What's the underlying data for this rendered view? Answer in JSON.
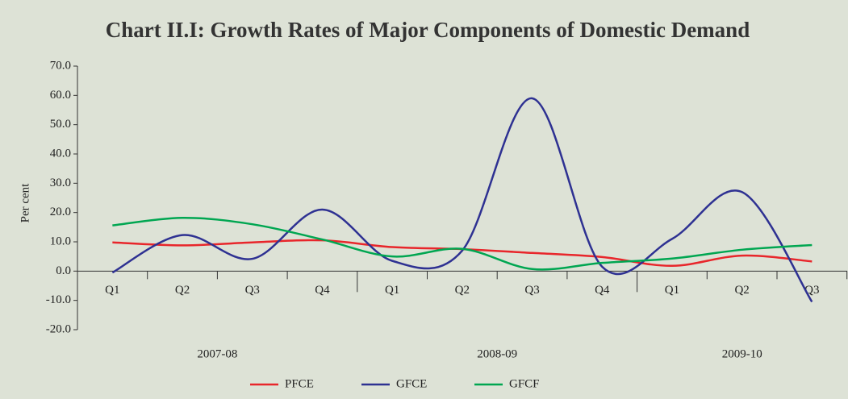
{
  "chart_data": {
    "type": "line",
    "title": "Chart II.I: Growth Rates of Major Components of Domestic Demand",
    "y_label": "Per cent",
    "category_groups": [
      {
        "name": "2007-08",
        "categories": [
          "Q1",
          "Q2",
          "Q3",
          "Q4"
        ]
      },
      {
        "name": "2008-09",
        "categories": [
          "Q1",
          "Q2",
          "Q3",
          "Q4"
        ]
      },
      {
        "name": "2009-10",
        "categories": [
          "Q1",
          "Q2",
          "Q3"
        ]
      }
    ],
    "series": [
      {
        "name": "PFCE",
        "color": "#e8262b",
        "values": [
          9.8,
          8.8,
          9.8,
          10.5,
          8.2,
          7.5,
          6.2,
          4.8,
          1.8,
          5.3,
          3.3
        ]
      },
      {
        "name": "GFCE",
        "color": "#2e3192",
        "values": [
          -0.5,
          12.3,
          4.2,
          21.0,
          3.5,
          7.0,
          59.0,
          1.5,
          11.0,
          27.0,
          -10.5
        ]
      },
      {
        "name": "GFCF",
        "color": "#00a651",
        "values": [
          15.6,
          18.2,
          16.0,
          10.8,
          5.0,
          7.6,
          0.7,
          2.8,
          4.3,
          7.3,
          8.9
        ]
      }
    ],
    "ylim": [
      -20,
      70
    ],
    "yticks": [
      {
        "value": -20,
        "label": "-20.0"
      },
      {
        "value": -10,
        "label": "-10.0"
      },
      {
        "value": 0,
        "label": "0.0"
      },
      {
        "value": 10,
        "label": "10.0"
      },
      {
        "value": 20,
        "label": "20.0"
      },
      {
        "value": 30,
        "label": "30.0"
      },
      {
        "value": 40,
        "label": "40.0"
      },
      {
        "value": 50,
        "label": "50.0"
      },
      {
        "value": 60,
        "label": "60.0"
      },
      {
        "value": 70,
        "label": "70.0"
      }
    ],
    "smooth": true,
    "legend": "bottom"
  }
}
